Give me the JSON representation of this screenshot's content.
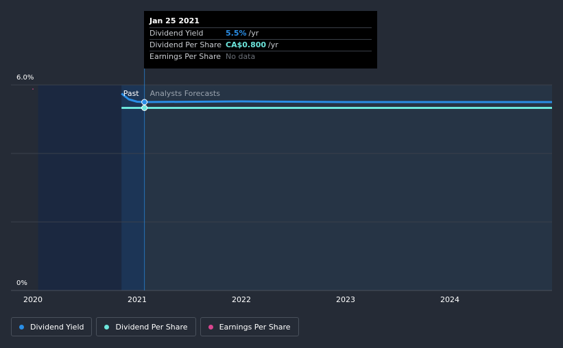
{
  "chart_data": {
    "type": "line",
    "title": "",
    "xlabel": "",
    "ylabel": "",
    "x_ticks": [
      "2020",
      "2021",
      "2022",
      "2023",
      "2024"
    ],
    "y_ticks": [
      "6.0%",
      "0%"
    ],
    "ylim": [
      0,
      6.0
    ],
    "xlim": [
      2019.8,
      2024.98
    ],
    "past_start": 2020.05,
    "forecast_start": 2021.07,
    "regions": {
      "past": "Past",
      "forecast": "Analysts Forecasts"
    },
    "series": [
      {
        "name": "Dividend Yield",
        "color": "#2a8ee6",
        "points": [
          [
            2020.85,
            5.75
          ],
          [
            2020.92,
            5.58
          ],
          [
            2021.0,
            5.51
          ],
          [
            2021.07,
            5.5
          ],
          [
            2022.0,
            5.52
          ],
          [
            2023.0,
            5.5
          ],
          [
            2024.0,
            5.5
          ],
          [
            2024.98,
            5.5
          ]
        ]
      },
      {
        "name": "Dividend Per Share",
        "color": "#6de6dc",
        "points": [
          [
            2020.85,
            5.33
          ],
          [
            2021.07,
            5.33
          ],
          [
            2022.0,
            5.33
          ],
          [
            2023.0,
            5.33
          ],
          [
            2024.0,
            5.33
          ],
          [
            2024.98,
            5.33
          ]
        ]
      },
      {
        "name": "Earnings Per Share",
        "color": "#d9468f",
        "points": []
      }
    ]
  },
  "tooltip": {
    "date": "Jan 25 2021",
    "rows": [
      {
        "label": "Dividend Yield",
        "value": "5.5%",
        "unit": "/yr",
        "color": "#2a8ee6"
      },
      {
        "label": "Dividend Per Share",
        "value": "CA$0.800",
        "unit": "/yr",
        "color": "#6de6dc"
      },
      {
        "label": "Earnings Per Share",
        "value": "No data",
        "unit": "",
        "color": "#6b7078"
      }
    ]
  },
  "legend": [
    {
      "label": "Dividend Yield",
      "color": "#2a8ee6"
    },
    {
      "label": "Dividend Per Share",
      "color": "#6de6dc"
    },
    {
      "label": "Earnings Per Share",
      "color": "#d9468f"
    }
  ]
}
